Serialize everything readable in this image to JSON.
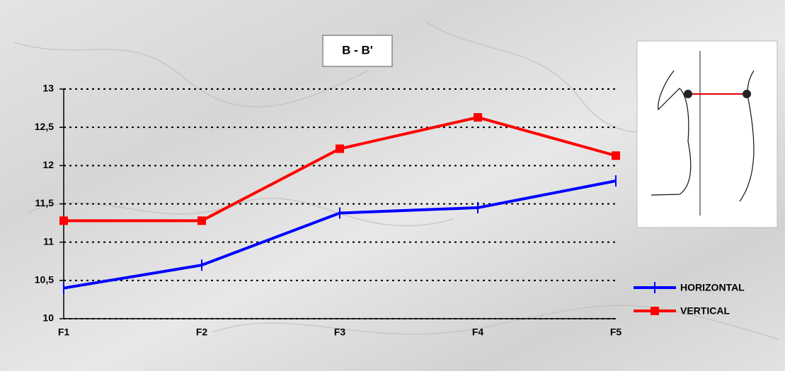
{
  "chart_data": {
    "type": "line",
    "title": "B - B'",
    "categories": [
      "F1",
      "F2",
      "F3",
      "F4",
      "F5"
    ],
    "series": [
      {
        "name": "HORIZONTAL",
        "color": "#0000ff",
        "marker": "dash",
        "values": [
          10.4,
          10.7,
          11.38,
          11.45,
          11.8
        ]
      },
      {
        "name": "VERTICAL",
        "color": "#ff0000",
        "marker": "square",
        "values": [
          11.28,
          11.28,
          12.22,
          12.63,
          12.13
        ]
      }
    ],
    "ylim": [
      10,
      13
    ],
    "yticks": [
      10,
      {
        "value": 10.5,
        "label": "10,5"
      },
      11,
      {
        "value": 11.5,
        "label": "11,5"
      },
      12,
      {
        "value": 12.5,
        "label": "12,5"
      },
      13
    ],
    "grid": true,
    "legend": "lower right"
  }
}
